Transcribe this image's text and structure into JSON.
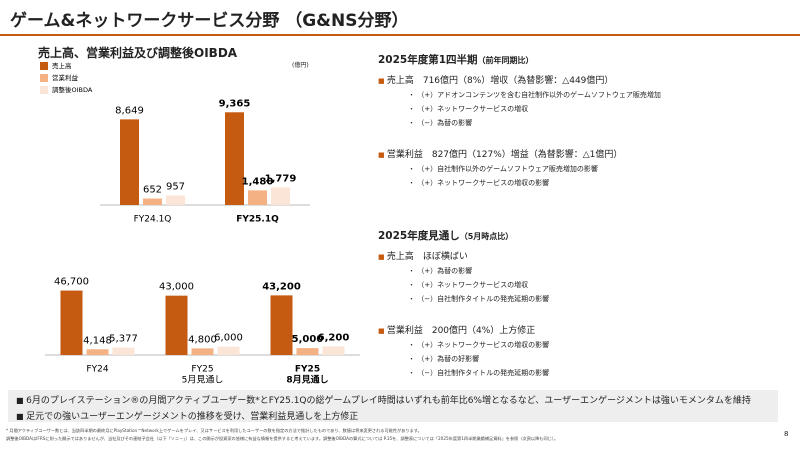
{
  "header": {
    "title": "ゲーム&ネットワークサービス分野 （G&NS分野）"
  },
  "chart_title": "売上高、営業利益及び調整後OIBDA",
  "unit": "(億円)",
  "chart_data": [
    {
      "type": "bar",
      "categories": [
        [
          "FY24.1Q"
        ],
        [
          "FY25.1Q"
        ]
      ],
      "series": [
        {
          "name": "売上高",
          "color": "#c55a11",
          "values": [
            8649,
            9365
          ],
          "value_labels": [
            "8,649",
            "9,365"
          ]
        },
        {
          "name": "営業利益",
          "color": "#f4b183",
          "values": [
            652,
            1480
          ],
          "value_labels": [
            "652",
            "1,480"
          ]
        },
        {
          "name": "調整後OIBDA",
          "color": "#fbe5d6",
          "values": [
            957,
            1779
          ],
          "value_labels": [
            "957",
            "1,779"
          ]
        }
      ],
      "ylim": [
        0,
        10000
      ],
      "legend": "top-left"
    },
    {
      "type": "bar",
      "categories": [
        [
          "FY24"
        ],
        [
          "FY25",
          "5月見通し"
        ],
        [
          "FY25",
          "8月見通し"
        ]
      ],
      "series": [
        {
          "color": "#c55a11",
          "values": [
            46700,
            43000,
            43200
          ],
          "value_labels": [
            "46,700",
            "43,000",
            "43,200"
          ]
        },
        {
          "color": "#f4b183",
          "values": [
            4148,
            4800,
            5000
          ],
          "value_labels": [
            "4,148",
            "4,800",
            "5,000"
          ]
        },
        {
          "color": "#fbe5d6",
          "values": [
            5377,
            6000,
            6200
          ],
          "value_labels": [
            "5,377",
            "6,000",
            "6,200"
          ]
        }
      ],
      "ylim": [
        0,
        50000
      ]
    }
  ],
  "sections": [
    {
      "heading": "2025年度第1四半期",
      "note": "（前年同期比）",
      "items": [
        {
          "text": "売上高　716億円（8%）増収（為替影響：△449億円）",
          "subs": [
            "（+）アドオンコンテンツを含む自社制作以外のゲームソフトウェア販売増加",
            "（+）ネットワークサービスの増収",
            "（−）為替の影響"
          ]
        },
        {
          "text": "営業利益　827億円（127%）増益（為替影響：△1億円）",
          "subs": [
            "（+）自社制作以外のゲームソフトウェア販売増加の影響",
            "（+）ネットワークサービスの増収の影響"
          ]
        }
      ]
    },
    {
      "heading": "2025年度見通し",
      "note": "（5月時点比）",
      "items": [
        {
          "text": "売上高　ほぼ横ばい",
          "subs": [
            "（+）為替の影響",
            "（+）ネットワークサービスの増収",
            "（−）自社制作タイトルの発売延期の影響"
          ]
        },
        {
          "text": "営業利益　200億円（4%）上方修正",
          "subs": [
            "（+）ネットワークサービスの増収の影響",
            "（+）為替の好影響",
            "（−）自社制作タイトルの発売延期の影響"
          ]
        }
      ]
    }
  ],
  "highlights": [
    "6月のプレイステーション®の月間アクティブユーザー数*とFY25.1Qの総ゲームプレイ時間はいずれも前年比6%増となるなど、ユーザーエンゲージメントは強いモメンタムを維持",
    "足元での強いユーザーエンゲージメントの推移を受け、営業利益見通しを上方修正"
  ],
  "footnotes": [
    "* 月間アクティブユーザー数とは、当該四半期の最終月にPlayStation™Network上でゲームをプレイ、又はサービスを利用したユーザーの数を指定の方法で推計したものであり、数値は将来変更される可能性があります。",
    "調整後OIBDAはIFRSに則った開示ではありませんが、当社及びその連結子会社（以下「ソニー」）は、この開示が投資家の皆様に有益な情報を提供すると考えています。調整後OIBDAの算式については P.15を、調整表については「2025年度第1四半期業績補足資料」を参照（次頁以降も同じ）。"
  ],
  "page_number": "8"
}
